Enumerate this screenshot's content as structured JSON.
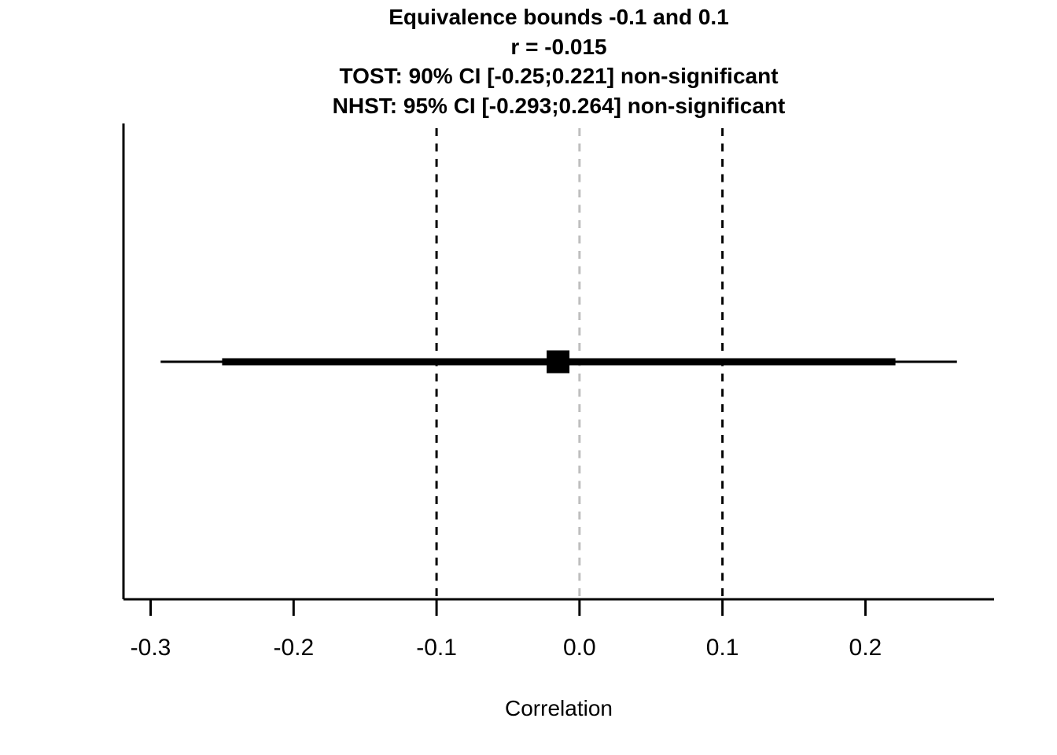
{
  "chart_data": {
    "type": "forest",
    "title_lines": [
      "Equivalence bounds -0.1 and 0.1",
      "r = -0.015",
      "TOST: 90% CI [-0.25;0.221] non-significant",
      "NHST: 95% CI [-0.293;0.264] non-significant"
    ],
    "xlabel": "Correlation",
    "estimate": -0.015,
    "ci_90": [
      -0.25,
      0.221
    ],
    "ci_95": [
      -0.293,
      0.264
    ],
    "equivalence_bounds": [
      -0.1,
      0.1
    ],
    "null_value": 0,
    "xlim": [
      -0.319,
      0.29
    ],
    "x_ticks": [
      -0.3,
      -0.2,
      -0.1,
      0,
      0.1,
      0.2
    ],
    "x_tick_labels": [
      "-0.3",
      "-0.2",
      "-0.1",
      "0.0",
      "0.1",
      "0.2"
    ],
    "legend_position": "none",
    "grid": false,
    "colors": {
      "foreground": "#000000",
      "null_line": "#BEBEBE",
      "background": "#FFFFFF"
    },
    "line_styles": {
      "equivalence_bounds": "dashed",
      "null_line": "dashed",
      "ci_95_weight": "thin",
      "ci_90_weight": "thick",
      "marker": "filled-square"
    }
  }
}
